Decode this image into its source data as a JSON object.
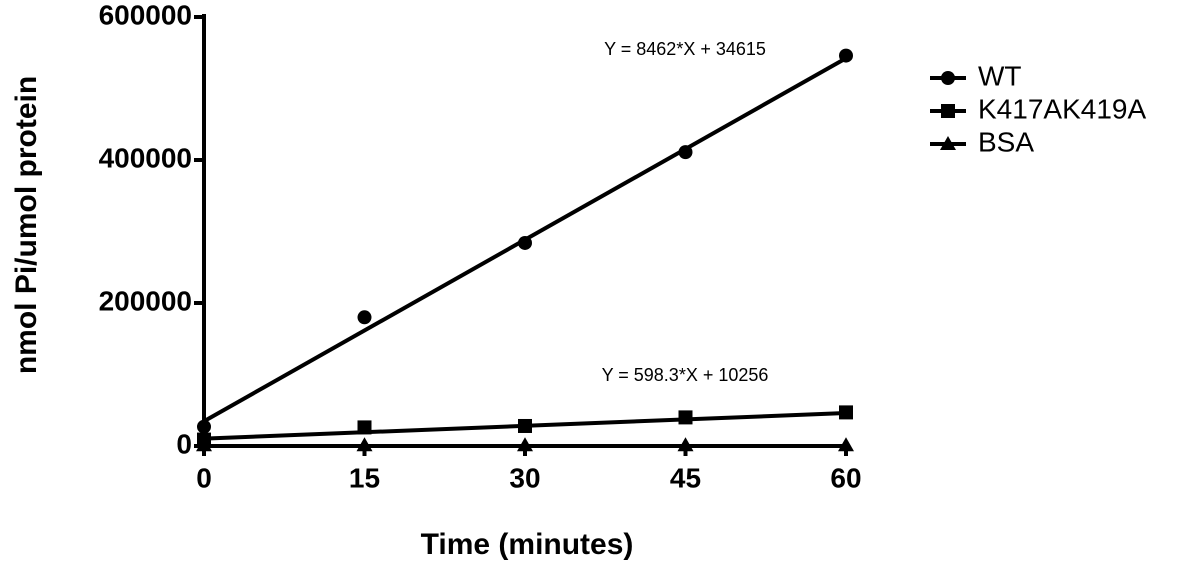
{
  "chart_data": {
    "type": "line",
    "x_label": "Time (minutes)",
    "y_label": "nmol Pi/umol protein",
    "x": [
      0,
      15,
      30,
      45,
      60
    ],
    "series": [
      {
        "name": "WT",
        "color": "#000000",
        "marker": "circle",
        "values": [
          27000,
          180000,
          284000,
          411000,
          546000
        ]
      },
      {
        "name": "K417AK419A",
        "color": "#000000",
        "marker": "square",
        "values": [
          9000,
          26000,
          28000,
          40000,
          47000
        ]
      },
      {
        "name": "BSA",
        "color": "#000000",
        "marker": "triangle",
        "values": [
          1000,
          1000,
          1000,
          1000,
          1000
        ]
      }
    ],
    "fits": [
      {
        "slope": 8462,
        "intercept": 34615,
        "label": "Y = 8462*X + 34615"
      },
      {
        "slope": 598.3,
        "intercept": 10256,
        "label": "Y = 598.3*X + 10256"
      }
    ],
    "xlim": [
      0,
      60
    ],
    "xticks": [
      0,
      15,
      30,
      45,
      60
    ],
    "ylim": [
      0,
      600000
    ],
    "yticks": [
      0,
      200000,
      400000,
      600000
    ],
    "legend": "right"
  }
}
